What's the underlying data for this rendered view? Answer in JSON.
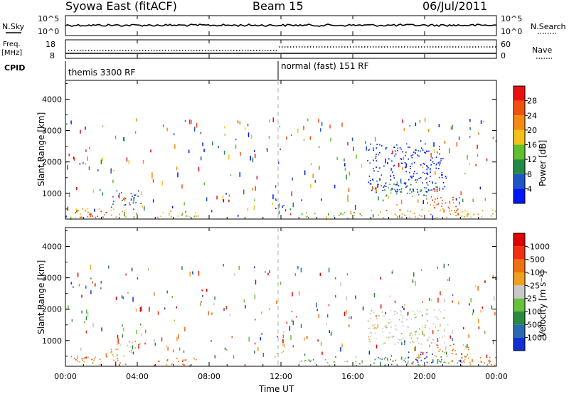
{
  "header": {
    "title": "Syowa East (fitACF)",
    "beam": "Beam 15",
    "date": "06/Jul/2011"
  },
  "top_panels": {
    "nsky_label": "N.Sky",
    "nsearch_label": "N.Search",
    "nsky_ticks": [
      "10^5",
      "10^0"
    ],
    "nsearch_ticks": [
      "10^5",
      "10^0"
    ],
    "freq_label_1": "Freq.",
    "freq_label_2": "[MHz]",
    "freq_ticks": [
      "18",
      "8"
    ],
    "nave_label": "Nave",
    "nave_ticks": [
      "60",
      "0"
    ],
    "cpid_label": "CPID",
    "modes": [
      {
        "name": "themis 3300 RF",
        "start_hour": 0
      },
      {
        "name": "normal (fast) 151 RF",
        "start_hour": 12
      }
    ]
  },
  "x_axis": {
    "label": "Time UT",
    "ticks": [
      "00:00",
      "04:00",
      "08:00",
      "12:00",
      "16:00",
      "20:00",
      "00:00"
    ]
  },
  "chart_data": [
    {
      "type": "heatmap",
      "name": "Power",
      "ylabel": "Slant Range [km]",
      "yticks": [
        "1000",
        "2000",
        "3000",
        "4000"
      ],
      "ylim": [
        180,
        4600
      ],
      "xlim_hours": [
        0,
        24
      ],
      "colorbar_label": "Power [dB]",
      "colorbar_ticks": [
        "4",
        "8",
        "12",
        "16",
        "20",
        "24",
        "28"
      ],
      "colors": [
        "#0018f5",
        "#1f55c8",
        "#238a45",
        "#5fbf2e",
        "#f2c21a",
        "#f58a10",
        "#f05010",
        "#e81010"
      ],
      "regions": [
        {
          "t0": 0.5,
          "t1": 2.5,
          "r0": 250,
          "r1": 480,
          "level": 7
        },
        {
          "t0": 0.3,
          "t1": 3.5,
          "r0": 220,
          "r1": 520,
          "level": 4
        },
        {
          "t0": 2.5,
          "t1": 4.2,
          "r0": 500,
          "r1": 1100,
          "level": 1
        },
        {
          "t0": 4.8,
          "t1": 7.5,
          "r0": 220,
          "r1": 450,
          "level": 4
        },
        {
          "t0": 11.6,
          "t1": 12.2,
          "r0": 500,
          "r1": 900,
          "level": 1
        },
        {
          "t0": 13.0,
          "t1": 16.5,
          "r0": 220,
          "r1": 420,
          "level": 3
        },
        {
          "t0": 16.8,
          "t1": 21.3,
          "r0": 1050,
          "r1": 1600,
          "level": 0
        },
        {
          "t0": 17.5,
          "t1": 21.0,
          "r0": 900,
          "r1": 1400,
          "level": 2
        },
        {
          "t0": 16.8,
          "t1": 21.0,
          "r0": 1600,
          "r1": 2600,
          "level": 0
        },
        {
          "t0": 17.0,
          "t1": 22.5,
          "r0": 220,
          "r1": 500,
          "level": 5
        },
        {
          "t0": 20.0,
          "t1": 22.0,
          "r0": 300,
          "r1": 900,
          "level": 6
        },
        {
          "t0": 22.0,
          "t1": 24.0,
          "r0": 220,
          "r1": 500,
          "level": 4
        }
      ]
    },
    {
      "type": "heatmap",
      "name": "Velocity",
      "ylabel": "Slant Range [km]",
      "yticks": [
        "1000",
        "2000",
        "3000",
        "4000"
      ],
      "ylim": [
        180,
        4600
      ],
      "xlim_hours": [
        0,
        24
      ],
      "colorbar_label": "Velocity [m s⁻¹]",
      "colorbar_ticks": [
        "1000",
        "500",
        "100",
        "25",
        "-25",
        "-100",
        "-500",
        "-1000"
      ],
      "colors": [
        "#1030d0",
        "#2a6ab0",
        "#2a8a40",
        "#68c040",
        "#c8c8c8",
        "#f0a020",
        "#f07010",
        "#f03010",
        "#e00000"
      ],
      "regions": [
        {
          "t0": 0.3,
          "t1": 3.5,
          "r0": 220,
          "r1": 520,
          "level": 6
        },
        {
          "t0": 2.5,
          "t1": 4.2,
          "r0": 500,
          "r1": 1000,
          "level": 5
        },
        {
          "t0": 4.8,
          "t1": 7.5,
          "r0": 220,
          "r1": 450,
          "level": 6
        },
        {
          "t0": 11.6,
          "t1": 12.2,
          "r0": 500,
          "r1": 900,
          "level": 5
        },
        {
          "t0": 13.0,
          "t1": 16.5,
          "r0": 220,
          "r1": 420,
          "level": 3
        },
        {
          "t0": 16.8,
          "t1": 21.3,
          "r0": 900,
          "r1": 2000,
          "level": 4
        },
        {
          "t0": 17.0,
          "t1": 21.5,
          "r0": 220,
          "r1": 500,
          "level": 2
        },
        {
          "t0": 19.0,
          "t1": 20.5,
          "r0": 300,
          "r1": 700,
          "level": 0
        },
        {
          "t0": 20.5,
          "t1": 22.5,
          "r0": 300,
          "r1": 900,
          "level": 6
        },
        {
          "t0": 22.0,
          "t1": 24.0,
          "r0": 220,
          "r1": 500,
          "level": 6
        }
      ]
    }
  ]
}
